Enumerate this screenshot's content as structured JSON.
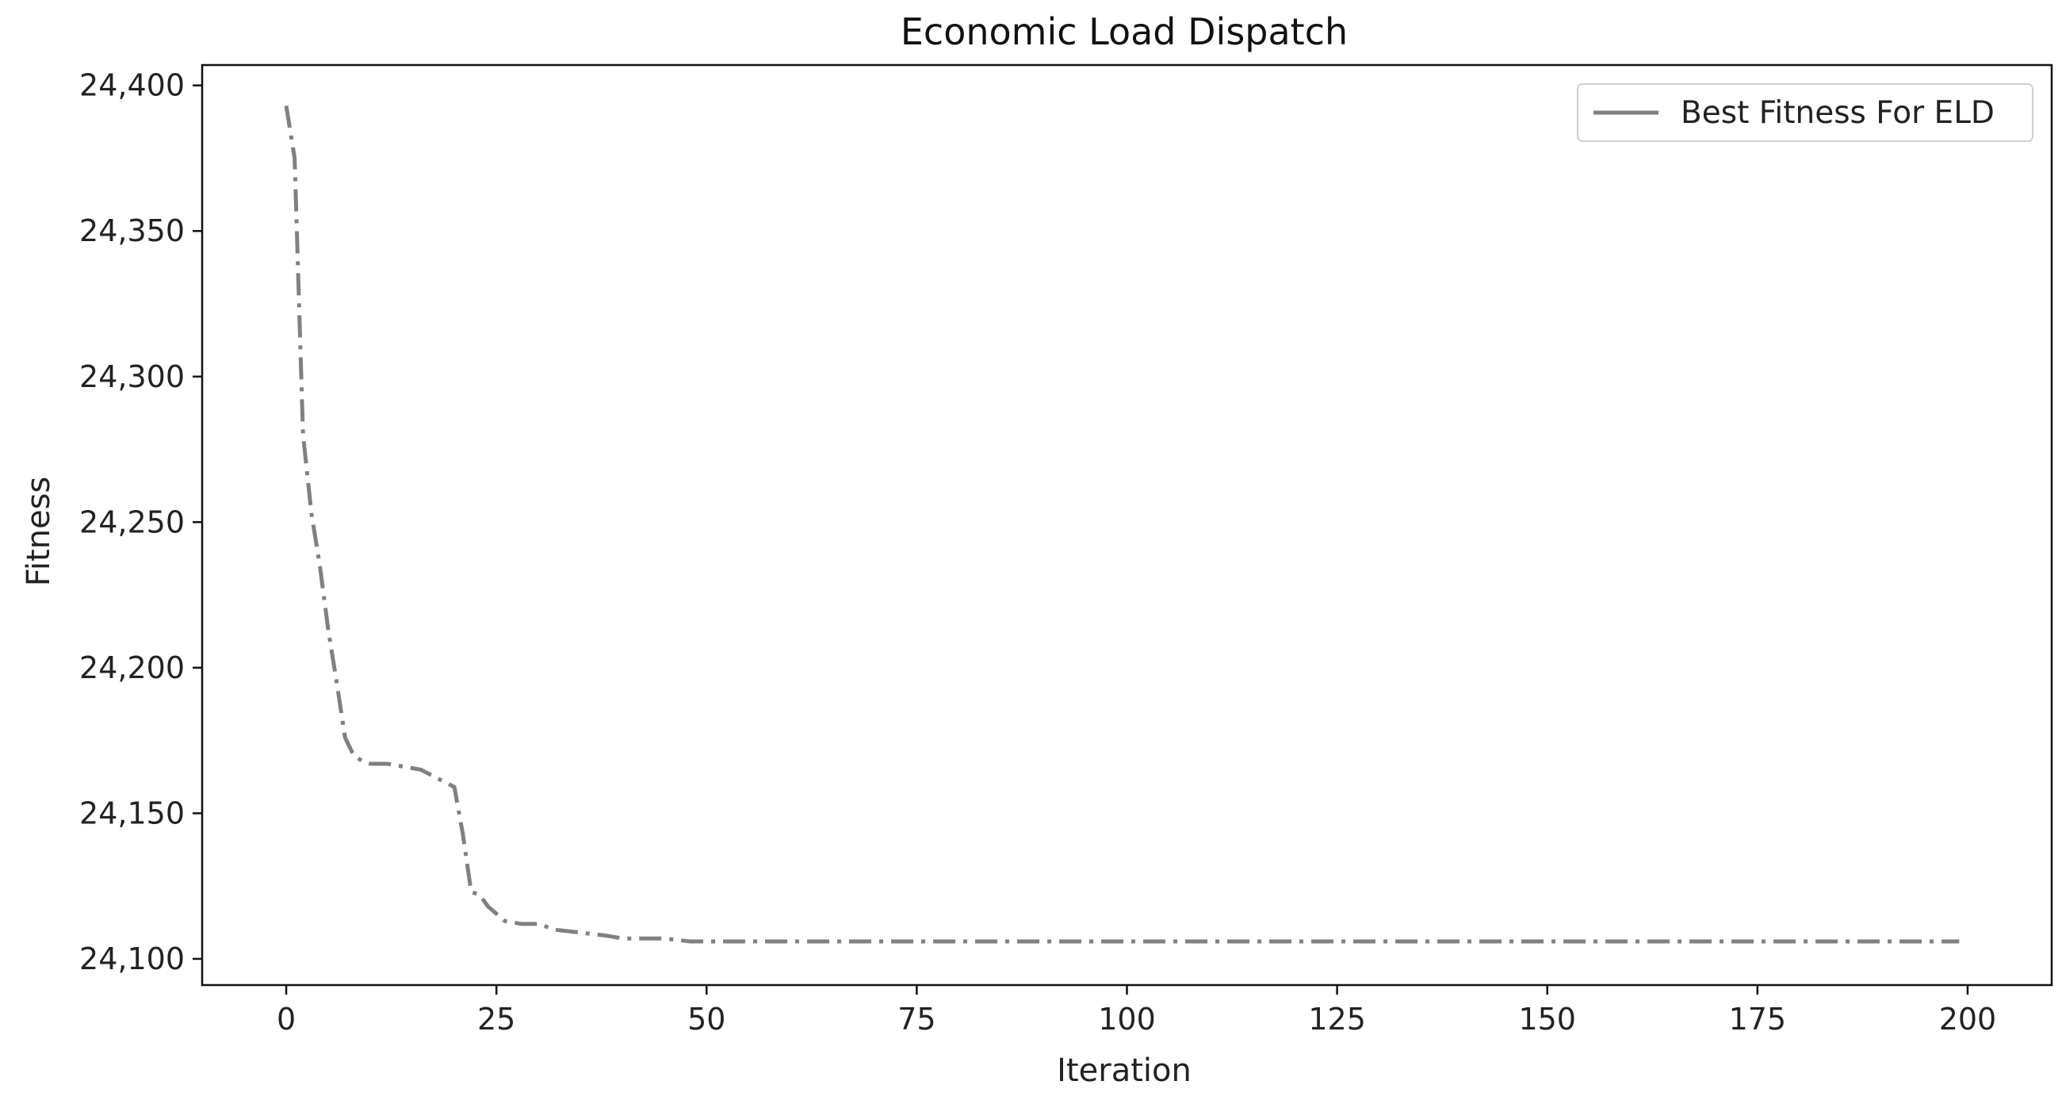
{
  "chart_data": {
    "type": "line",
    "title": "Economic Load Dispatch",
    "xlabel": "Iteration",
    "ylabel": "Fitness",
    "xlim": [
      -10,
      210
    ],
    "ylim": [
      24091,
      24407
    ],
    "xticks": [
      0,
      25,
      50,
      75,
      100,
      125,
      150,
      175,
      200
    ],
    "yticks": [
      24100,
      24150,
      24200,
      24250,
      24300,
      24350,
      24400
    ],
    "ytick_labels": [
      "24,100",
      "24,150",
      "24,200",
      "24,250",
      "24,300",
      "24,350",
      "24,400"
    ],
    "grid": false,
    "legend_position": "top-right",
    "series": [
      {
        "name": "Best Fitness For ELD",
        "color": "#808080",
        "linestyle": "dashdot",
        "x": [
          0,
          1,
          2,
          3,
          4,
          5,
          6,
          7,
          8,
          9,
          10,
          12,
          14,
          16,
          18,
          20,
          21,
          22,
          23,
          24,
          26,
          28,
          30,
          32,
          35,
          38,
          40,
          42,
          45,
          48,
          50,
          60,
          80,
          100,
          120,
          140,
          160,
          180,
          199
        ],
        "values": [
          24393,
          24375,
          24280,
          24253,
          24235,
          24213,
          24195,
          24176,
          24170,
          24168,
          24167,
          24167,
          24166,
          24165,
          24162,
          24159,
          24143,
          24123,
          24122,
          24118,
          24113,
          24112,
          24112,
          24110,
          24109,
          24108,
          24107,
          24107,
          24107,
          24106,
          24106,
          24106,
          24106,
          24106,
          24106,
          24106,
          24106,
          24106,
          24106
        ]
      }
    ]
  }
}
